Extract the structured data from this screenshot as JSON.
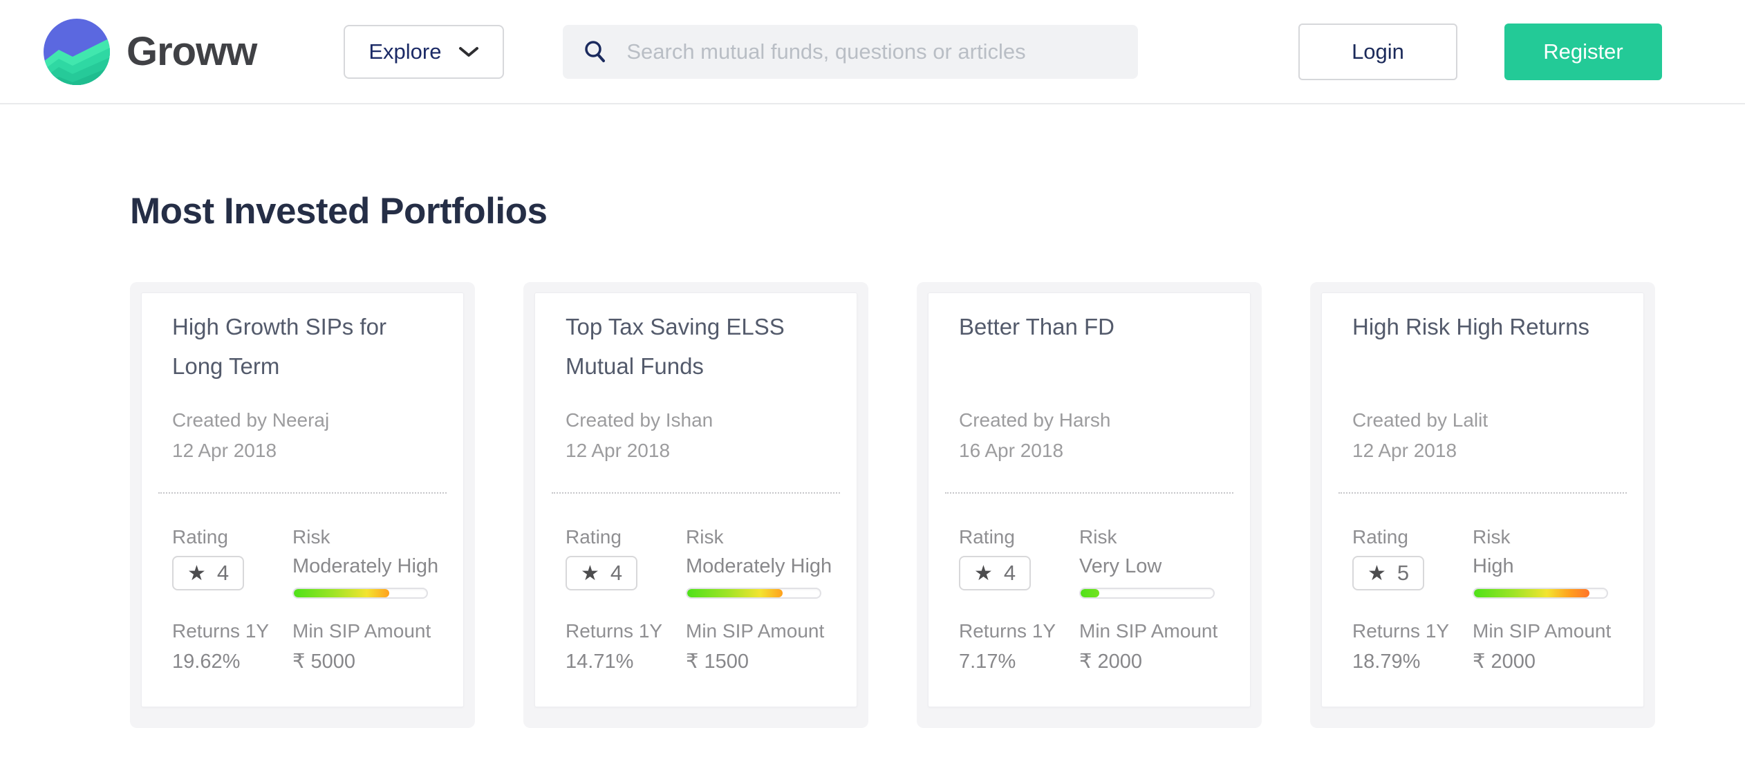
{
  "header": {
    "brand": "Groww",
    "explore_label": "Explore",
    "search_placeholder": "Search mutual funds, questions or articles",
    "login_label": "Login",
    "register_label": "Register"
  },
  "page": {
    "title": "Most Invested Portfolios"
  },
  "labels": {
    "rating": "Rating",
    "risk": "Risk",
    "returns_1y": "Returns 1Y",
    "min_sip": "Min SIP Amount"
  },
  "rating_star": "★",
  "colors": {
    "accent_green": "#23ca97",
    "logo_blue": "#5b68e0",
    "logo_mint": "#41e7ae",
    "logo_teal": "#26ca99",
    "risk_green": "#4fe11a",
    "risk_yellow": "#f3e431",
    "risk_orange": "#ffa01e",
    "risk_red": "#ff4d33",
    "heading_navy": "#252e46"
  },
  "cards": [
    {
      "title": "High Growth SIPs for Long Term",
      "created_by": "Created by Neeraj",
      "date": "12 Apr 2018",
      "rating": "4",
      "risk_level": "Moderately High",
      "risk_percent": 72,
      "returns_1y": "19.62%",
      "min_sip": "₹ 5000"
    },
    {
      "title": "Top Tax Saving ELSS Mutual Funds",
      "created_by": "Created by Ishan",
      "date": "12 Apr 2018",
      "rating": "4",
      "risk_level": "Moderately High",
      "risk_percent": 72,
      "returns_1y": "14.71%",
      "min_sip": "₹ 1500"
    },
    {
      "title": "Better Than FD",
      "created_by": "Created by Harsh",
      "date": "16 Apr 2018",
      "rating": "4",
      "risk_level": "Very Low",
      "risk_percent": 14,
      "returns_1y": "7.17%",
      "min_sip": "₹ 2000"
    },
    {
      "title": "High Risk High Returns",
      "created_by": "Created by Lalit",
      "date": "12 Apr 2018",
      "rating": "5",
      "risk_level": "High",
      "risk_percent": 87,
      "returns_1y": "18.79%",
      "min_sip": "₹ 2000"
    }
  ]
}
